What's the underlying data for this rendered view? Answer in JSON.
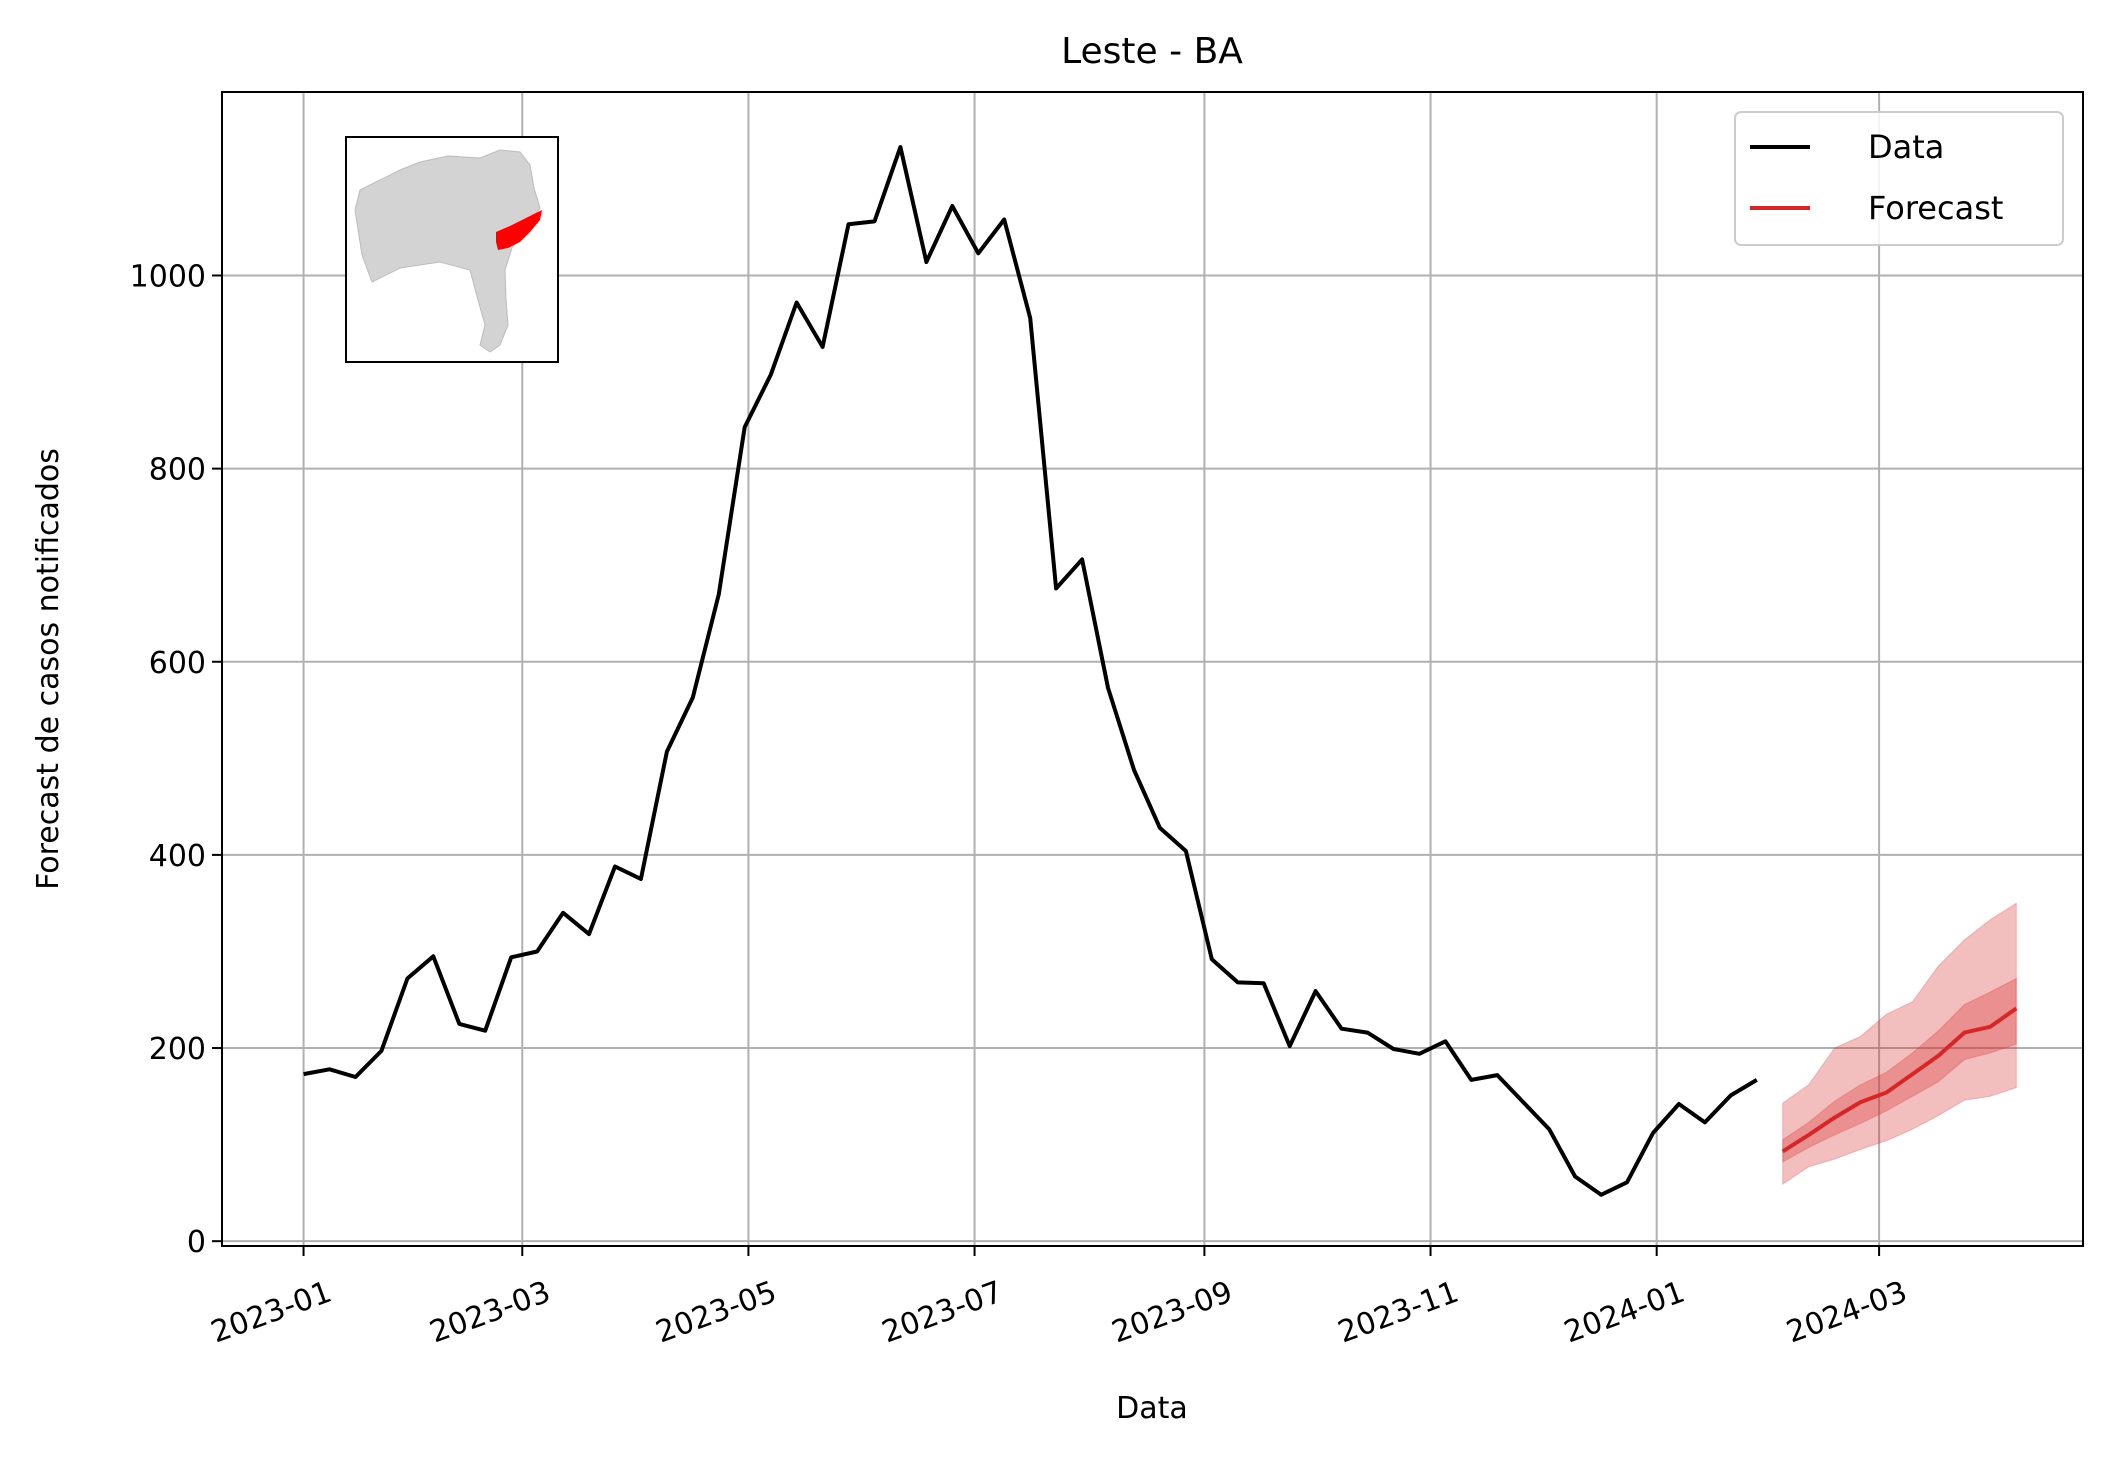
{
  "chart_data": {
    "type": "line",
    "title": "Leste - BA",
    "xlabel": "Data",
    "ylabel": "Forecast de casos notificados",
    "xlim": [
      "2022-12-10",
      "2024-04-25"
    ],
    "ylim": [
      -5,
      1190
    ],
    "grid": true,
    "legend_position": "top-right",
    "x_ticks": [
      "2023-01-01",
      "2023-03-01",
      "2023-05-01",
      "2023-07-01",
      "2023-09-01",
      "2023-11-01",
      "2024-01-01",
      "2024-03-01"
    ],
    "x_tick_labels": [
      "2023-01",
      "2023-03",
      "2023-05",
      "2023-07",
      "2023-09",
      "2023-11",
      "2024-01",
      "2024-03"
    ],
    "y_ticks": [
      0,
      200,
      400,
      600,
      800,
      1000
    ],
    "y_tick_labels": [
      "0",
      "200",
      "400",
      "600",
      "800",
      "1000"
    ],
    "legend": [
      {
        "label": "Data",
        "color": "#000000"
      },
      {
        "label": "Forecast",
        "color": "#d62728"
      }
    ],
    "series": [
      {
        "name": "Data",
        "color": "#000000",
        "x": [
          "2023-01-01",
          "2023-01-08",
          "2023-01-15",
          "2023-01-22",
          "2023-01-29",
          "2023-02-05",
          "2023-02-12",
          "2023-02-19",
          "2023-02-26",
          "2023-03-05",
          "2023-03-12",
          "2023-03-19",
          "2023-03-26",
          "2023-04-02",
          "2023-04-09",
          "2023-04-16",
          "2023-04-23",
          "2023-04-30",
          "2023-05-07",
          "2023-05-14",
          "2023-05-21",
          "2023-05-28",
          "2023-06-04",
          "2023-06-11",
          "2023-06-18",
          "2023-06-25",
          "2023-07-02",
          "2023-07-09",
          "2023-07-16",
          "2023-07-23",
          "2023-07-30",
          "2023-08-06",
          "2023-08-13",
          "2023-08-20",
          "2023-08-27",
          "2023-09-03",
          "2023-09-10",
          "2023-09-17",
          "2023-09-24",
          "2023-10-01",
          "2023-10-08",
          "2023-10-15",
          "2023-10-22",
          "2023-10-29",
          "2023-11-05",
          "2023-11-12",
          "2023-11-19",
          "2023-11-26",
          "2023-12-03",
          "2023-12-10",
          "2023-12-17",
          "2023-12-24",
          "2023-12-31",
          "2024-01-07",
          "2024-01-14",
          "2024-01-21",
          "2024-01-28"
        ],
        "values": [
          173,
          178,
          170,
          197,
          272,
          295,
          225,
          218,
          294,
          300,
          340,
          318,
          388,
          375,
          507,
          563,
          670,
          843,
          897,
          972,
          926,
          1053,
          1056,
          1133,
          1014,
          1072,
          1023,
          1058,
          956,
          676,
          706,
          573,
          488,
          428,
          404,
          292,
          268,
          267,
          202,
          259,
          220,
          216,
          199,
          194,
          207,
          167,
          172,
          144,
          116,
          67,
          48,
          61,
          112,
          142,
          123,
          151,
          167
        ]
      },
      {
        "name": "Forecast",
        "color": "#d62728",
        "x": [
          "2024-02-04",
          "2024-02-11",
          "2024-02-18",
          "2024-02-25",
          "2024-03-03",
          "2024-03-10",
          "2024-03-17",
          "2024-03-24",
          "2024-03-31",
          "2024-04-07"
        ],
        "values": [
          93,
          110,
          128,
          144,
          154,
          173,
          192,
          216,
          222,
          241
        ],
        "inner_lower": [
          82,
          97,
          110,
          122,
          135,
          150,
          165,
          188,
          195,
          204
        ],
        "inner_upper": [
          105,
          123,
          145,
          162,
          175,
          195,
          218,
          245,
          258,
          272
        ],
        "outer_lower": [
          59,
          77,
          85,
          95,
          104,
          116,
          130,
          146,
          150,
          159
        ],
        "outer_upper": [
          143,
          162,
          200,
          212,
          235,
          248,
          285,
          312,
          333,
          350
        ]
      }
    ],
    "inset_map": {
      "base_color": "#d3d3d3",
      "highlight_color": "#ff0000"
    }
  }
}
